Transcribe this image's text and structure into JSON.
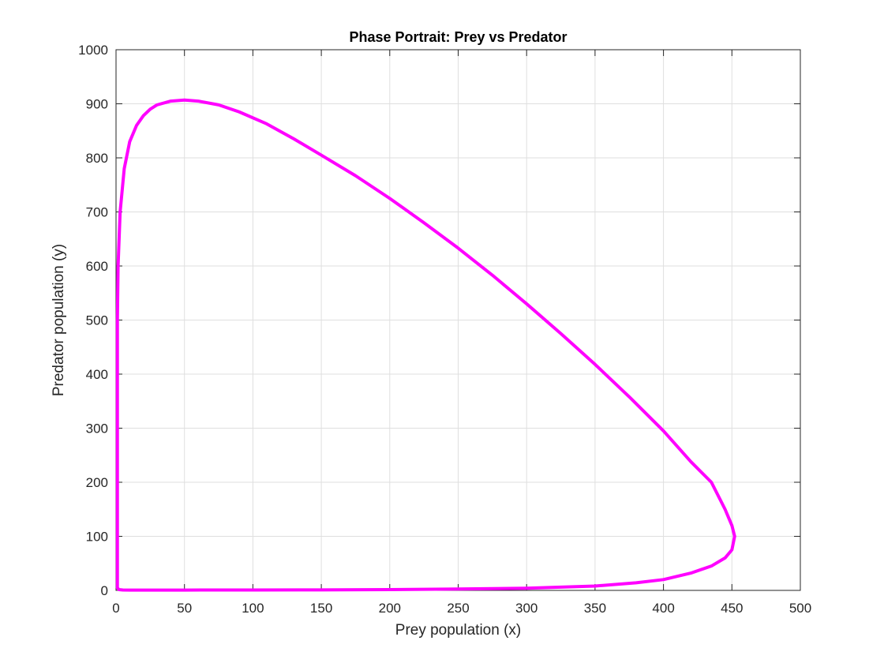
{
  "chart_data": {
    "type": "line",
    "title": "Phase Portrait: Prey vs Predator",
    "xlabel": "Prey population (x)",
    "ylabel": "Predator population (y)",
    "xlim": [
      0,
      500
    ],
    "ylim": [
      0,
      1000
    ],
    "xticks": [
      "0",
      "50",
      "100",
      "150",
      "200",
      "250",
      "300",
      "350",
      "400",
      "450",
      "500"
    ],
    "yticks": [
      "0",
      "100",
      "200",
      "300",
      "400",
      "500",
      "600",
      "700",
      "800",
      "900",
      "1000"
    ],
    "grid": true,
    "line_color": "#ff00ff",
    "series": [
      {
        "x": [
          1,
          1,
          1,
          1,
          1.5,
          3,
          6,
          10,
          15,
          20,
          25,
          30,
          40,
          50,
          60,
          75,
          90,
          110,
          130,
          150,
          175,
          200,
          225,
          250,
          275,
          300,
          325,
          350,
          375,
          400,
          420,
          435,
          445,
          450,
          452,
          450,
          445,
          435,
          420,
          400,
          380,
          350,
          300,
          250,
          200,
          150,
          100,
          50,
          20,
          10,
          5,
          2,
          1
        ],
        "y": [
          5,
          100,
          300,
          500,
          600,
          700,
          780,
          830,
          860,
          878,
          890,
          898,
          905,
          907,
          905,
          898,
          885,
          863,
          835,
          805,
          767,
          725,
          680,
          633,
          583,
          530,
          475,
          418,
          358,
          295,
          238,
          200,
          150,
          120,
          100,
          75,
          60,
          45,
          32,
          20,
          14,
          8,
          4,
          2.5,
          1.5,
          1,
          0.8,
          0.6,
          0.5,
          0.5,
          0.8,
          1.5,
          5
        ]
      }
    ]
  }
}
